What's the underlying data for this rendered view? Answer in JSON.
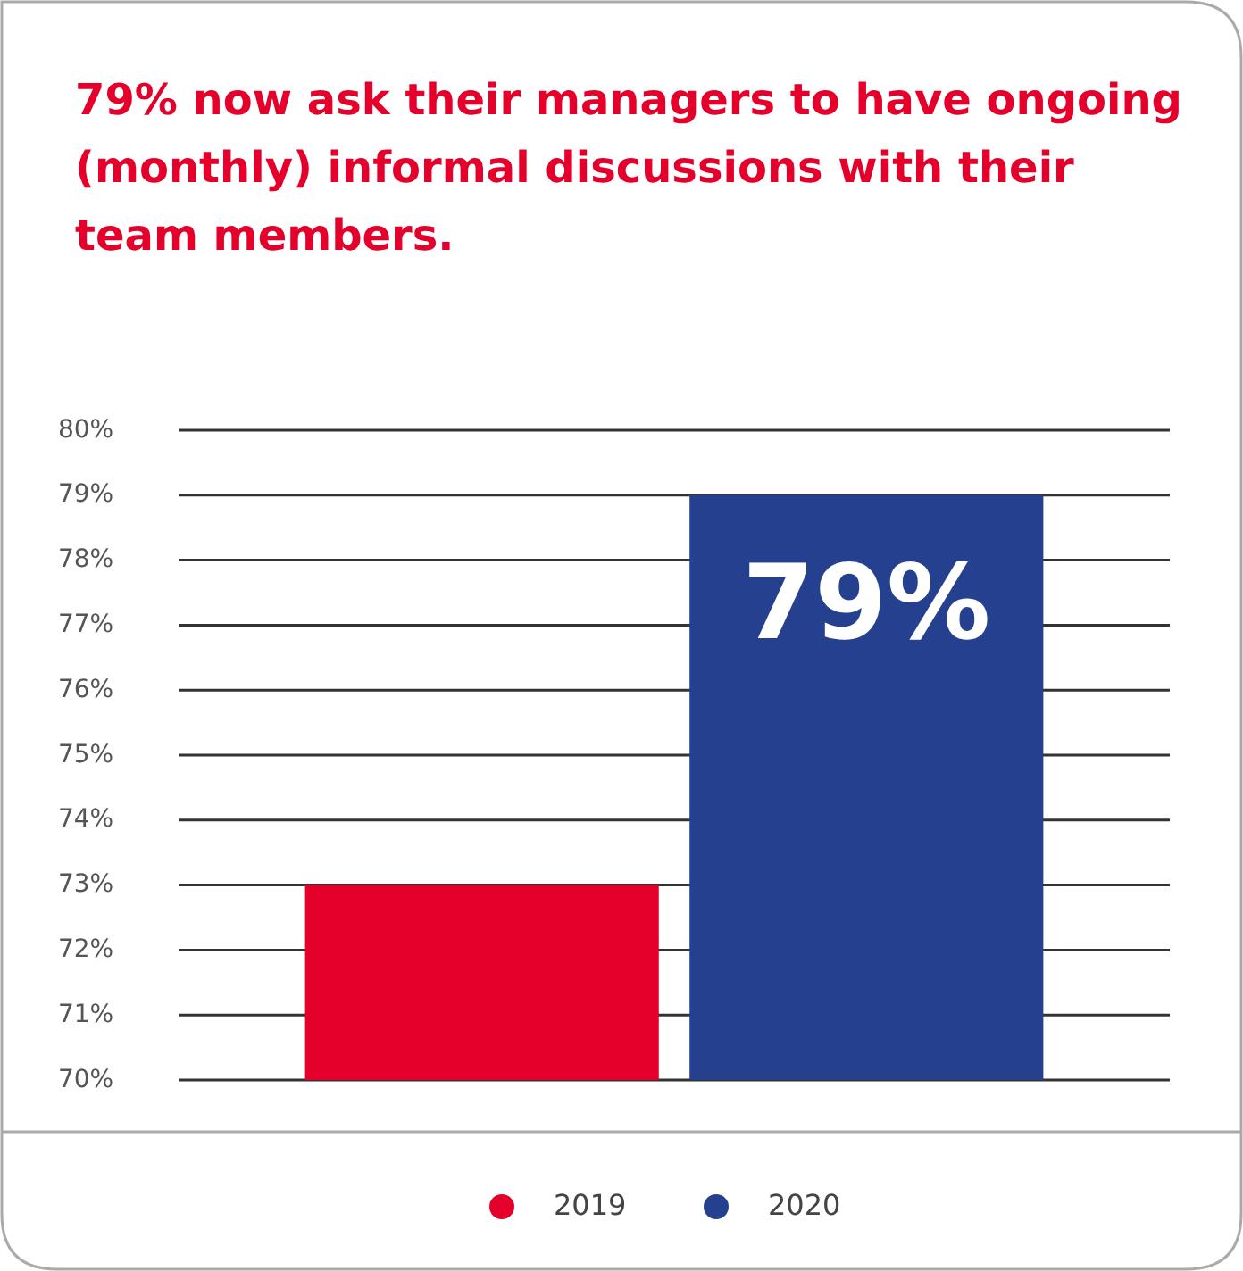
{
  "chart_data": {
    "type": "bar",
    "title": "79% now ask their managers to have ongoing (monthly) informal discussions with their team members.",
    "categories": [
      null
    ],
    "series": [
      {
        "name": "2019",
        "color": "#e4002b",
        "values": [
          73
        ]
      },
      {
        "name": "2020",
        "color": "#24408e",
        "values": [
          79
        ],
        "value_labels": [
          "79%"
        ]
      }
    ],
    "ylim": [
      70,
      80
    ],
    "yticks": [
      {
        "value": 70,
        "label": "70%"
      },
      {
        "value": 71,
        "label": "71%"
      },
      {
        "value": 72,
        "label": "72%"
      },
      {
        "value": 73,
        "label": "73%"
      },
      {
        "value": 74,
        "label": "74%"
      },
      {
        "value": 75,
        "label": "75%"
      },
      {
        "value": 76,
        "label": "76%"
      },
      {
        "value": 77,
        "label": "77%"
      },
      {
        "value": 78,
        "label": "78%"
      },
      {
        "value": 79,
        "label": "79%"
      },
      {
        "value": 80,
        "label": "80%"
      }
    ],
    "grid": "y",
    "legend": "bottom"
  }
}
